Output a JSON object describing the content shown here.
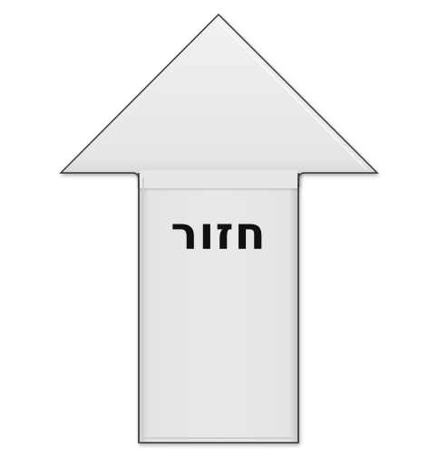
{
  "back_button": {
    "label": "חזור",
    "icon": "up-arrow-icon",
    "fill_color": "#e6e6e6",
    "outline_color": "#333333"
  }
}
